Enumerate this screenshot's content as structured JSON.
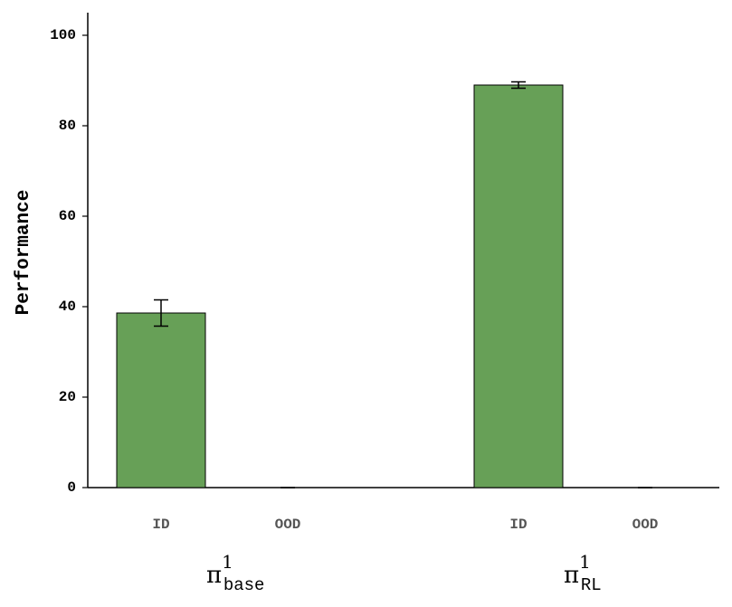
{
  "chart_data": {
    "type": "bar",
    "ylabel": "Performance",
    "categories": [
      "ID",
      "OOD",
      "ID",
      "OOD"
    ],
    "groups": [
      {
        "symbol": "π",
        "sup": "1",
        "sub": "base"
      },
      {
        "symbol": "π",
        "sup": "1",
        "sub": "RL"
      }
    ],
    "series": [
      {
        "color": "#67a057",
        "values": [
          38.6,
          0,
          89.0,
          0
        ],
        "errors": [
          2.9,
          0,
          0.7,
          0
        ]
      }
    ],
    "ylim": [
      0,
      105
    ],
    "yticks": [
      0,
      20,
      40,
      60,
      80,
      100
    ],
    "grid": false
  }
}
